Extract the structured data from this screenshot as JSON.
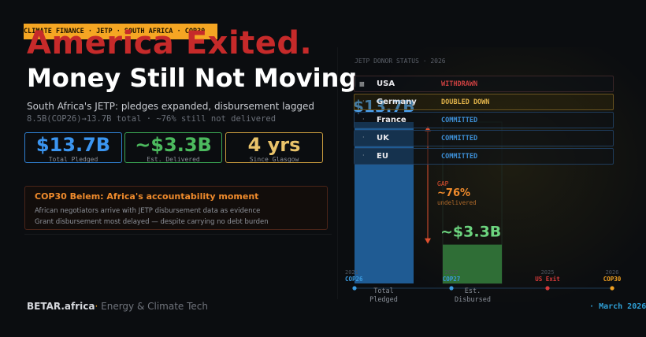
{
  "ribbon": {
    "text": "CLIMATE FINANCE  ·  JETP  ·  SOUTH AFRICA  ·  COP30"
  },
  "headline": {
    "line1": "America Exited.",
    "line2": "Money Still Not Moving."
  },
  "subtitle": "South Africa's JETP: pledges expanded, disbursement lagged",
  "subline": "8.5B(COP26)→13.7B total  ·  ~76% still not delivered",
  "stats": [
    {
      "value": "$13.7B",
      "label": "Total Pledged",
      "color": "#3b95f0"
    },
    {
      "value": "~$3.3B",
      "label": "Est. Delivered",
      "color": "#4cba5e"
    },
    {
      "value": "4 yrs",
      "label": "Since Glasgow",
      "color": "#e9c36a"
    }
  ],
  "callout": {
    "title": "COP30 Belem: Africa's accountability moment",
    "lines": [
      "African negotiators arrive with JETP disbursement data as evidence",
      "Grant disbursement most delayed — despite carrying no debt burden"
    ]
  },
  "brand": {
    "name": "BETAR.africa",
    "dot": "·",
    "tagline": "Energy & Climate Tech"
  },
  "donor_status": {
    "header": "JETP DONOR STATUS  ·  2026",
    "rows": [
      {
        "country": "USA",
        "status": "WITHDRAWN",
        "status_color": "#c94040",
        "border": "#3a2628"
      },
      {
        "country": "Germany",
        "status": "DOUBLED DOWN",
        "status_color": "#e0b24a",
        "border": "#6a5420"
      },
      {
        "country": "France",
        "status": "COMMITTED",
        "status_color": "#3d8fd6",
        "border": "#1f3c5c"
      },
      {
        "country": "UK",
        "status": "COMMITTED",
        "status_color": "#3d8fd6",
        "border": "#1f3c5c"
      },
      {
        "country": "EU",
        "status": "COMMITTED",
        "status_color": "#3d8fd6",
        "border": "#1f3c5c"
      }
    ],
    "bullet": "·"
  },
  "chart_data": {
    "type": "bar",
    "categories": [
      "Total\nPledged",
      "Est.\nDisbursed"
    ],
    "values": [
      13.7,
      3.3
    ],
    "value_labels": [
      "$13.7B",
      "~$3.3B"
    ],
    "colors": [
      "#1f5b93",
      "#2f6e36"
    ],
    "ylim": [
      0,
      13.7
    ],
    "gap": {
      "label": "GAP",
      "value": "~76%",
      "sublabel": "undelivered",
      "color": "#e0502f"
    },
    "timeline": [
      {
        "year": "2021",
        "event": "COP26",
        "color": "#3b9be0"
      },
      {
        "year": "2022",
        "event": "COP27",
        "color": "#3b9be0"
      },
      {
        "year": "2025",
        "event": "US Exit",
        "color": "#d83a3a"
      },
      {
        "year": "2026",
        "event": "COP30",
        "color": "#f0a020"
      }
    ]
  },
  "date": {
    "text": "March 2026"
  }
}
